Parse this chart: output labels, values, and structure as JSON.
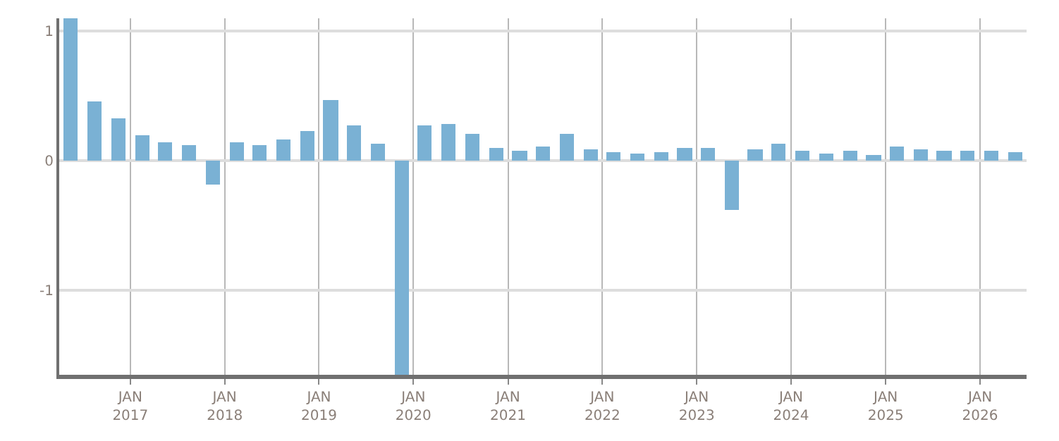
{
  "chart_data": {
    "type": "bar",
    "color": "#7ab1d4",
    "x": [
      "2016-05-15",
      "2016-08-15",
      "2016-11-15",
      "2017-02-15",
      "2017-05-15",
      "2017-08-15",
      "2017-11-15",
      "2018-02-15",
      "2018-05-15",
      "2018-08-15",
      "2018-11-15",
      "2019-02-15",
      "2019-05-15",
      "2019-08-15",
      "2019-11-15",
      "2020-02-15",
      "2020-05-15",
      "2020-08-15",
      "2020-11-15",
      "2021-02-15",
      "2021-05-15",
      "2021-08-15",
      "2021-11-15",
      "2022-02-15",
      "2022-05-15",
      "2022-08-15",
      "2022-11-15",
      "2023-02-15",
      "2023-05-15",
      "2023-08-15",
      "2023-11-15",
      "2024-02-15",
      "2024-05-15",
      "2024-08-15",
      "2024-11-15",
      "2025-02-15",
      "2025-05-15",
      "2025-08-15",
      "2025-11-15",
      "2026-02-15",
      "2026-05-15"
    ],
    "values": [
      1.1,
      0.46,
      0.33,
      0.2,
      0.14,
      0.12,
      -0.18,
      0.14,
      0.12,
      0.17,
      0.23,
      0.47,
      0.27,
      0.13,
      -1.65,
      0.27,
      0.28,
      0.21,
      0.1,
      0.08,
      0.11,
      0.21,
      0.09,
      0.07,
      0.06,
      0.07,
      0.1,
      0.1,
      -0.38,
      0.09,
      0.13,
      0.08,
      0.06,
      0.08,
      0.05,
      0.11,
      0.09,
      0.08,
      0.08,
      0.08,
      0.07
    ],
    "ylim": [
      -1.65,
      1.1
    ],
    "yticks": [
      -1,
      0,
      1
    ],
    "xlim": [
      "2016-04-01",
      "2026-06-30"
    ],
    "xticks": [
      {
        "value": "2017-01-01",
        "label": "JAN\n2017"
      },
      {
        "value": "2018-01-01",
        "label": "JAN\n2018"
      },
      {
        "value": "2019-01-01",
        "label": "JAN\n2019"
      },
      {
        "value": "2020-01-01",
        "label": "JAN\n2020"
      },
      {
        "value": "2021-01-01",
        "label": "JAN\n2021"
      },
      {
        "value": "2022-01-01",
        "label": "JAN\n2022"
      },
      {
        "value": "2023-01-01",
        "label": "JAN\n2023"
      },
      {
        "value": "2024-01-01",
        "label": "JAN\n2024"
      },
      {
        "value": "2025-01-01",
        "label": "JAN\n2025"
      },
      {
        "value": "2026-01-01",
        "label": "JAN\n2026"
      }
    ],
    "grid": true
  }
}
